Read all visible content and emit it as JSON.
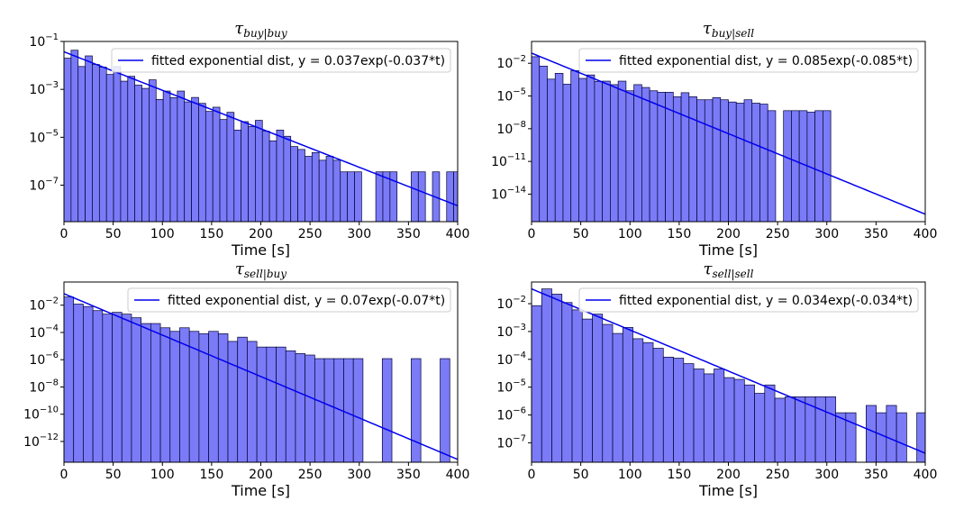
{
  "colors": {
    "bar_fill": "#7b7bf7",
    "bar_edge": "#000033",
    "fit_line": "#0000ee"
  },
  "chart_data": [
    {
      "type": "bar",
      "title": "τ",
      "title_sub": "buy|buy",
      "xlabel": "Time [s]",
      "ylog": true,
      "xlim": [
        0,
        400
      ],
      "xticks": [
        "0",
        "50",
        "100",
        "150",
        "200",
        "250",
        "300",
        "350",
        "400"
      ],
      "ylim": [
        3e-09,
        0.1
      ],
      "yticks": [
        {
          "v": 0.1,
          "base": "10",
          "exp": "−1"
        },
        {
          "v": 0.001,
          "base": "10",
          "exp": "−3"
        },
        {
          "v": 1e-05,
          "base": "10",
          "exp": "−5"
        },
        {
          "v": 1e-07,
          "base": "10",
          "exp": "−7"
        }
      ],
      "bin_width": 7.2,
      "values": [
        0.02,
        0.043,
        0.009,
        0.025,
        0.011,
        0.0085,
        0.0042,
        0.009,
        0.0022,
        0.0035,
        0.0015,
        0.0011,
        0.0025,
        0.00038,
        0.00085,
        0.00045,
        0.00085,
        0.0003,
        0.00046,
        0.00026,
        0.00012,
        0.00018,
        5.5e-05,
        0.00011,
        2e-05,
        4.5e-05,
        2.8e-05,
        5.1e-05,
        1.8e-05,
        7.1e-06,
        2e-05,
        1.1e-05,
        4.1e-06,
        3.1e-06,
        1.6e-06,
        2.3e-06,
        1.1e-06,
        1.6e-06,
        1.1e-06,
        3.6e-07,
        3.6e-07,
        3.6e-07,
        0,
        0,
        3.6e-07,
        3.6e-07,
        3.6e-07,
        0,
        0,
        3.6e-07,
        3.6e-07,
        0,
        3.6e-07,
        0,
        3.6e-07,
        3.6e-07,
        0,
        0,
        3.6e-07,
        3.6e-07,
        0,
        0,
        0,
        0,
        0,
        0,
        0,
        0,
        0,
        0
      ],
      "fit": {
        "a": 0.037,
        "b": 0.037
      },
      "legend": "fitted exponential dist, y = 0.037exp(-0.037*t)"
    },
    {
      "type": "bar",
      "title": "τ",
      "title_sub": "buy|sell",
      "xlabel": "Time [s]",
      "ylog": true,
      "xlim": [
        0,
        400
      ],
      "xticks": [
        "0",
        "50",
        "100",
        "150",
        "200",
        "250",
        "300",
        "350",
        "400"
      ],
      "ylim": [
        3e-17,
        1
      ],
      "yticks": [
        {
          "v": 0.01,
          "base": "10",
          "exp": "−2"
        },
        {
          "v": 1e-05,
          "base": "10",
          "exp": "−5"
        },
        {
          "v": 1e-08,
          "base": "10",
          "exp": "−8"
        },
        {
          "v": 1e-11,
          "base": "10",
          "exp": "−11"
        },
        {
          "v": 1e-14,
          "base": "10",
          "exp": "−14"
        }
      ],
      "bin_width": 8.0,
      "values": [
        0.04,
        0.0055,
        0.00035,
        0.0012,
        0.00012,
        0.0021,
        0.00041,
        0.00085,
        0.00022,
        0.00023,
        0.00011,
        0.00023,
        3e-05,
        0.00011,
        6e-05,
        3e-05,
        2.2e-05,
        2.2e-05,
        8.5e-06,
        2e-05,
        8.5e-06,
        4.5e-06,
        4.5e-06,
        7.1e-06,
        4.5e-06,
        2.8e-06,
        2.2e-06,
        4.5e-06,
        2.2e-06,
        1.8e-06,
        4.5e-07,
        0,
        4.5e-07,
        4.5e-07,
        4.5e-07,
        3.3e-07,
        4.5e-07,
        4.5e-07,
        0,
        0,
        0,
        0,
        0,
        0,
        0,
        0,
        0,
        0,
        0
      ],
      "fit": {
        "a": 0.085,
        "b": 0.085
      },
      "legend": "fitted exponential dist, y = 0.085exp(-0.085*t)"
    },
    {
      "type": "bar",
      "title": "τ",
      "title_sub": "sell|buy",
      "xlabel": "Time [s]",
      "ylog": true,
      "xlim": [
        0,
        400
      ],
      "xticks": [
        "0",
        "50",
        "100",
        "150",
        "200",
        "250",
        "300",
        "350",
        "400"
      ],
      "ylim": [
        3e-14,
        0.5
      ],
      "yticks": [
        {
          "v": 0.01,
          "base": "10",
          "exp": "−2"
        },
        {
          "v": 0.0001,
          "base": "10",
          "exp": "−4"
        },
        {
          "v": 1e-06,
          "base": "10",
          "exp": "−6"
        },
        {
          "v": 1e-08,
          "base": "10",
          "exp": "−8"
        },
        {
          "v": 1e-10,
          "base": "10",
          "exp": "−10"
        },
        {
          "v": 1e-12,
          "base": "10",
          "exp": "−12"
        }
      ],
      "bin_width": 9.8,
      "values": [
        0.04,
        0.012,
        0.008,
        0.004,
        0.0022,
        0.003,
        0.0022,
        0.0012,
        0.00045,
        0.00045,
        0.00022,
        0.00012,
        0.00022,
        0.00012,
        8e-05,
        0.00012,
        8e-05,
        2.2e-05,
        4.5e-05,
        2.2e-05,
        8.5e-06,
        8.5e-06,
        8.5e-06,
        4.5e-06,
        2.8e-06,
        2.2e-06,
        1.2e-06,
        1.2e-06,
        1.2e-06,
        1.2e-06,
        1.2e-06,
        0,
        0,
        1.2e-06,
        0,
        0,
        1.2e-06,
        0,
        0,
        1.2e-06,
        0,
        1.2e-06,
        0,
        0
      ],
      "fit": {
        "a": 0.07,
        "b": 0.07
      },
      "legend": "fitted exponential dist, y = 0.07exp(-0.07*t)"
    },
    {
      "type": "bar",
      "title": "τ",
      "title_sub": "sell|sell",
      "xlabel": "Time [s]",
      "ylog": true,
      "xlim": [
        0,
        400
      ],
      "xticks": [
        "0",
        "50",
        "100",
        "150",
        "200",
        "250",
        "300",
        "350",
        "400"
      ],
      "ylim": [
        2e-08,
        0.06
      ],
      "yticks": [
        {
          "v": 0.01,
          "base": "10",
          "exp": "−2"
        },
        {
          "v": 0.001,
          "base": "10",
          "exp": "−3"
        },
        {
          "v": 0.0001,
          "base": "10",
          "exp": "−4"
        },
        {
          "v": 1e-05,
          "base": "10",
          "exp": "−5"
        },
        {
          "v": 1e-06,
          "base": "10",
          "exp": "−6"
        },
        {
          "v": 1e-07,
          "base": "10",
          "exp": "−7"
        }
      ],
      "bin_width": 10.3,
      "values": [
        0.0085,
        0.034,
        0.022,
        0.011,
        0.006,
        0.0028,
        0.0042,
        0.0018,
        0.00085,
        0.0014,
        0.00055,
        0.0004,
        0.00025,
        0.00012,
        0.00011,
        7e-05,
        4.5e-05,
        3e-05,
        4.5e-05,
        2.2e-05,
        1.9e-05,
        1.2e-05,
        6e-06,
        1.2e-05,
        4e-06,
        4.5e-06,
        4.5e-06,
        4.5e-06,
        4.5e-06,
        4.5e-06,
        1.2e-06,
        1.2e-06,
        0,
        2.2e-06,
        1.2e-06,
        2.2e-06,
        1.2e-06,
        0,
        1.2e-06,
        1.2e-06
      ],
      "fit": {
        "a": 0.034,
        "b": 0.034
      },
      "legend": "fitted exponential dist, y = 0.034exp(-0.034*t)"
    }
  ]
}
